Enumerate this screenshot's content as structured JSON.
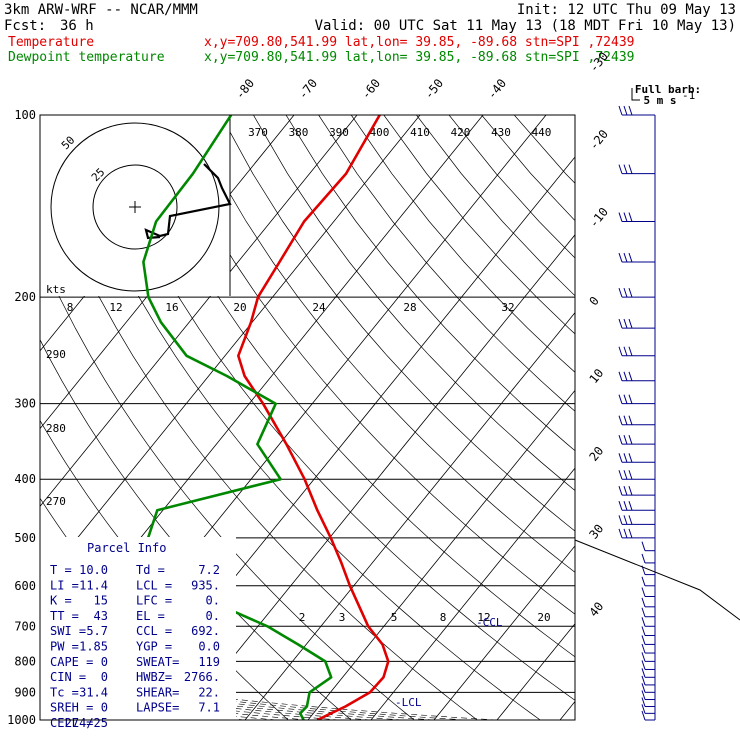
{
  "header": {
    "line1_left": "3km ARW-WRF -- NCAR/MMM",
    "line1_right": "Init: 12 UTC Thu 09 May 13",
    "fcst_label": "Fcst:",
    "fcst_value": "36 h",
    "valid": "Valid: 00 UTC Sat 11 May 13 (18 MDT Fri 10 May 13)"
  },
  "legend": [
    {
      "label": "Temperature",
      "info": "x,y=709.80,541.99   lat,lon= 39.85, -89.68   stn=SPI ,72439",
      "color": "#e00000"
    },
    {
      "label": "Dewpoint temperature",
      "info": "x,y=709.80,541.99   lat,lon= 39.85, -89.68   stn=SPI ,72439",
      "color": "#008800"
    }
  ],
  "barb_legend": {
    "title": "Full barb:",
    "value": "5 m s"
  },
  "chart_data": {
    "type": "line",
    "subtype": "skew-T log-p sounding",
    "y_axis": {
      "label": "pressure (hPa)",
      "ticks": [
        "100",
        "200",
        "300",
        "400",
        "500",
        "600",
        "700",
        "800",
        "900",
        "1000"
      ],
      "scale": "log",
      "range": [
        1000,
        100
      ]
    },
    "x_axis_isotherm_labels": [
      "-80",
      "-70",
      "-60",
      "-50",
      "-40",
      "-30",
      "-20",
      "-10",
      "0",
      "10",
      "20",
      "30",
      "40"
    ],
    "theta_labels": [
      "370",
      "380",
      "390",
      "400",
      "410",
      "420",
      "430",
      "440"
    ],
    "theta_left_labels": [
      "290",
      "280",
      "270"
    ],
    "mixing_ratio_labels_upper": [
      "8",
      "12",
      "16",
      "20",
      "24",
      "28",
      "32"
    ],
    "mixing_ratio_labels_lower": [
      "2",
      "3",
      "5",
      "8",
      "12",
      "20"
    ],
    "series": [
      {
        "name": "Temperature",
        "color": "#e00000",
        "points": [
          [
            1000,
            11.5
          ],
          [
            975,
            12.8
          ],
          [
            950,
            14.2
          ],
          [
            900,
            16.3
          ],
          [
            850,
            16.5
          ],
          [
            800,
            15.2
          ],
          [
            750,
            12.1
          ],
          [
            700,
            7.5
          ],
          [
            650,
            3.6
          ],
          [
            600,
            -0.6
          ],
          [
            550,
            -4.9
          ],
          [
            500,
            -9.8
          ],
          [
            450,
            -15.5
          ],
          [
            400,
            -21.5
          ],
          [
            350,
            -28.9
          ],
          [
            300,
            -37.8
          ],
          [
            270,
            -44.3
          ],
          [
            250,
            -47.9
          ],
          [
            220,
            -50.2
          ],
          [
            200,
            -52.3
          ],
          [
            175,
            -53.4
          ],
          [
            150,
            -54.7
          ],
          [
            125,
            -54.2
          ],
          [
            100,
            -56.4
          ]
        ]
      },
      {
        "name": "Dewpoint temperature",
        "color": "#008800",
        "points": [
          [
            1000,
            9.3
          ],
          [
            975,
            7.9
          ],
          [
            950,
            8.1
          ],
          [
            900,
            6.7
          ],
          [
            850,
            8.2
          ],
          [
            800,
            5.2
          ],
          [
            750,
            -1.3
          ],
          [
            700,
            -8.5
          ],
          [
            650,
            -18.0
          ],
          [
            600,
            -26.5
          ],
          [
            550,
            -32.3
          ],
          [
            500,
            -38.8
          ],
          [
            450,
            -40.9
          ],
          [
            400,
            -25.3
          ],
          [
            350,
            -33.5
          ],
          [
            300,
            -35.8
          ],
          [
            270,
            -47.1
          ],
          [
            250,
            -56.1
          ],
          [
            220,
            -64.5
          ],
          [
            200,
            -69.7
          ],
          [
            175,
            -75.0
          ],
          [
            150,
            -78.2
          ],
          [
            125,
            -78.5
          ],
          [
            100,
            -80.0
          ]
        ]
      }
    ],
    "lcl_label": "LCL",
    "ccl_label": "CCL",
    "el_label": "EL"
  },
  "hodograph": {
    "units_label": "kts",
    "ring_labels": [
      "25",
      "50"
    ]
  },
  "parcel_info": {
    "title": "Parcel Info",
    "rows": [
      [
        "T  =",
        "10.0",
        "Td  =",
        "7.2"
      ],
      [
        "LI =",
        "11.4",
        "LCL =",
        "935."
      ],
      [
        "K  =",
        "15",
        "LFC =",
        "0."
      ],
      [
        "TT =",
        "43",
        "EL  =",
        "0."
      ],
      [
        "SWI =",
        "5.7",
        "CCL =",
        "692."
      ],
      [
        "PW =",
        "1.85",
        "YGP =",
        "0.0"
      ],
      [
        "CAPE =",
        "0",
        "SWEAT=",
        "119"
      ],
      [
        "CIN =",
        "0",
        "HWBZ=",
        "2766."
      ],
      [
        "Tc =",
        "31.4",
        "SHEAR=",
        "22."
      ],
      [
        "SREH =",
        "0",
        "LAPSE=",
        "7.1"
      ],
      [
        "CELL =",
        "274/25",
        "",
        ""
      ]
    ]
  },
  "colors": {
    "temperature": "#e00000",
    "dewpoint": "#008800",
    "wind": "#00008b",
    "grid": "#000000"
  }
}
